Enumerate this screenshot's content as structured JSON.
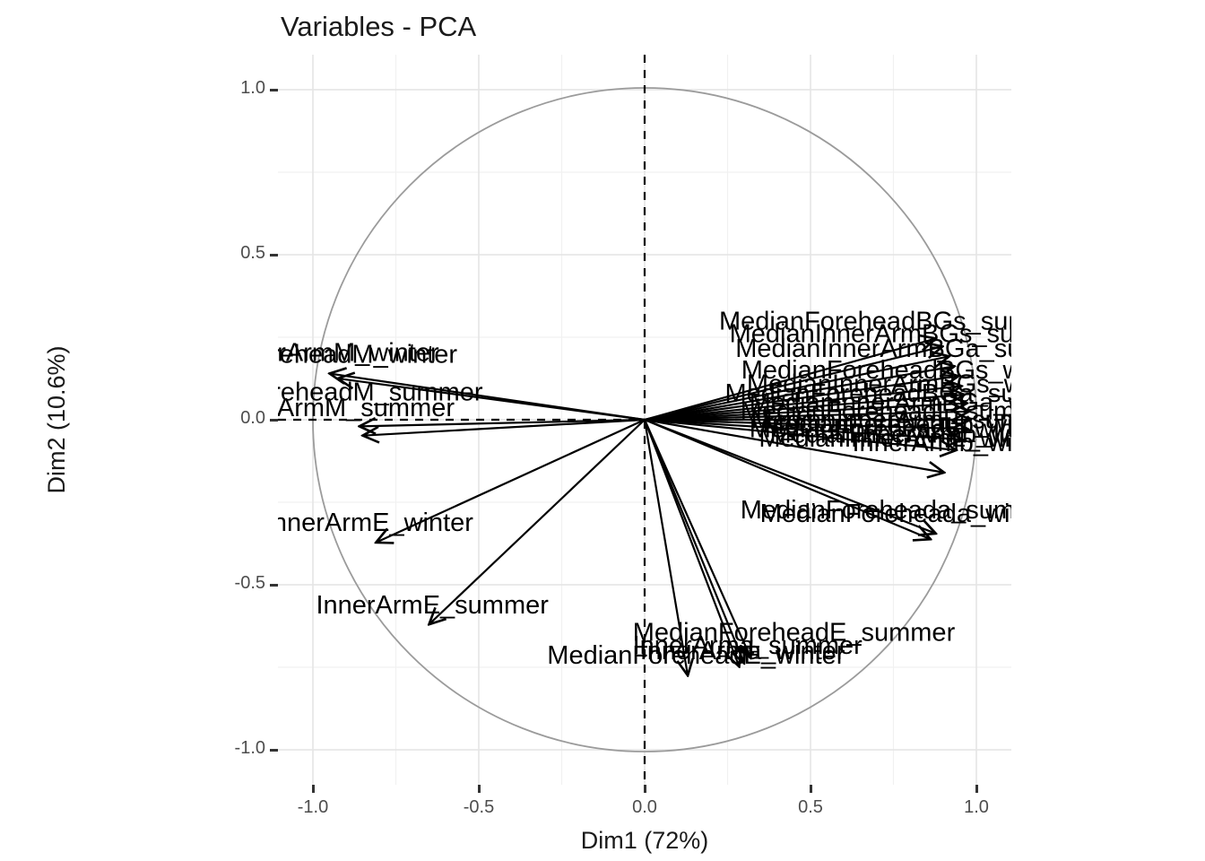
{
  "page": {
    "background": "#ffffff"
  },
  "chart_data": {
    "type": "scatter",
    "subtype": "pca-variable-correlation-circle",
    "title": "Variables - PCA",
    "xlabel": "Dim1 (72%)",
    "ylabel": "Dim2 (10.6%)",
    "xlim": [
      -1.105,
      1.105
    ],
    "ylim": [
      -1.105,
      1.105
    ],
    "tick_values": [
      -1.0,
      -0.5,
      0.0,
      0.5,
      1.0
    ],
    "tick_labels": [
      "-1.0",
      "-0.5",
      "0.0",
      "0.5",
      "1.0"
    ],
    "minor_tick_values": [
      -0.75,
      -0.25,
      0.25,
      0.75
    ],
    "grid": true,
    "legend": false,
    "unit_circle": true,
    "dashed_reference_axes": true,
    "colors": {
      "arrow": "#000000",
      "label_text": "#000000",
      "circle": "#9b9b9b",
      "grid_major": "#e4e4e4",
      "grid_minor": "#f1f1f1",
      "tick_text": "#4d4d4d",
      "axis_text": "#1a1a1a",
      "dashed_axes": "#000000"
    },
    "variables": [
      {
        "name": "InnerArmM_winter",
        "x": -0.95,
        "y": 0.14,
        "label_x": -0.94,
        "label_y": 0.205
      },
      {
        "name": "MedianForeheadM_winter",
        "x": -0.925,
        "y": 0.125,
        "label_x": -1.02,
        "label_y": 0.2
      },
      {
        "name": "MedianForeheadM_summer",
        "x": -0.86,
        "y": -0.02,
        "label_x": -0.98,
        "label_y": 0.085
      },
      {
        "name": "InnerArmM_summer",
        "x": -0.85,
        "y": -0.048,
        "label_x": -0.93,
        "label_y": 0.038
      },
      {
        "name": "InnerArmE_winter",
        "x": -0.81,
        "y": -0.372,
        "label_x": -0.83,
        "label_y": -0.31
      },
      {
        "name": "InnerArmE_summer",
        "x": -0.65,
        "y": -0.62,
        "label_x": -0.64,
        "label_y": -0.56
      },
      {
        "name": "MedianForeheadE_summer",
        "x": 0.13,
        "y": -0.775,
        "label_x": 0.45,
        "label_y": -0.642
      },
      {
        "name": "InnerArma_summer",
        "x": 0.285,
        "y": -0.748,
        "label_x": 0.31,
        "label_y": -0.682
      },
      {
        "name": "InnerArma_winter",
        "x": 0.3,
        "y": -0.738,
        "label_x": 0.295,
        "label_y": -0.698
      },
      {
        "name": "MedianForeheadE_winter",
        "x": 0.32,
        "y": -0.722,
        "label_x": 0.155,
        "label_y": -0.712
      },
      {
        "name": "MedianForeheada_summer",
        "x": 0.862,
        "y": -0.362,
        "label_x": 0.77,
        "label_y": -0.272
      },
      {
        "name": "MedianForeheada_winter",
        "x": 0.878,
        "y": -0.345,
        "label_x": 0.792,
        "label_y": -0.282
      },
      {
        "name": "MedianForeheadBGs_summer",
        "x": 0.878,
        "y": 0.246,
        "label_x": 0.76,
        "label_y": 0.3
      },
      {
        "name": "MedianInnerArmBGs_summer",
        "x": 0.898,
        "y": 0.222,
        "label_x": 0.785,
        "label_y": 0.262
      },
      {
        "name": "MedianInnerArmBGa_summer",
        "x": 0.918,
        "y": 0.192,
        "label_x": 0.805,
        "label_y": 0.218
      },
      {
        "name": "MedianForeheadBGs_winter",
        "x": 0.934,
        "y": 0.162,
        "label_x": 0.79,
        "label_y": 0.152
      },
      {
        "name": "MedianInnerArmBGs_winter",
        "x": 0.946,
        "y": 0.132,
        "label_x": 0.8,
        "label_y": 0.11
      },
      {
        "name": "MedianForeheadBGa_summer",
        "x": 0.956,
        "y": 0.102,
        "label_x": 0.78,
        "label_y": 0.082
      },
      {
        "name": "MedianInnerArmBGa_winter",
        "x": 0.964,
        "y": 0.076,
        "label_x": 0.81,
        "label_y": 0.055
      },
      {
        "name": "MedianForeheadL_summer",
        "x": 0.972,
        "y": 0.05,
        "label_x": 0.77,
        "label_y": 0.028
      },
      {
        "name": "MedianInnerArmL_summer",
        "x": 0.978,
        "y": 0.025,
        "label_x": 0.795,
        "label_y": 0.002
      },
      {
        "name": "MedianForeheadL_winter",
        "x": 0.982,
        "y": 0.0,
        "label_x": 0.76,
        "label_y": -0.026
      },
      {
        "name": "MedianInnerArmL_winter",
        "x": 0.974,
        "y": -0.028,
        "label_x": 0.782,
        "label_y": -0.055
      },
      {
        "name": "MedianForeheadb_winter",
        "x": 0.958,
        "y": -0.06,
        "label_x": 0.8,
        "label_y": -0.012
      },
      {
        "name": "MedianInnerArmb_winter",
        "x": 0.94,
        "y": -0.092,
        "label_x": 0.815,
        "label_y": -0.042
      },
      {
        "name": "InnerArmb_winter",
        "x": 0.903,
        "y": -0.16,
        "label_x": 0.935,
        "label_y": -0.068
      }
    ]
  }
}
